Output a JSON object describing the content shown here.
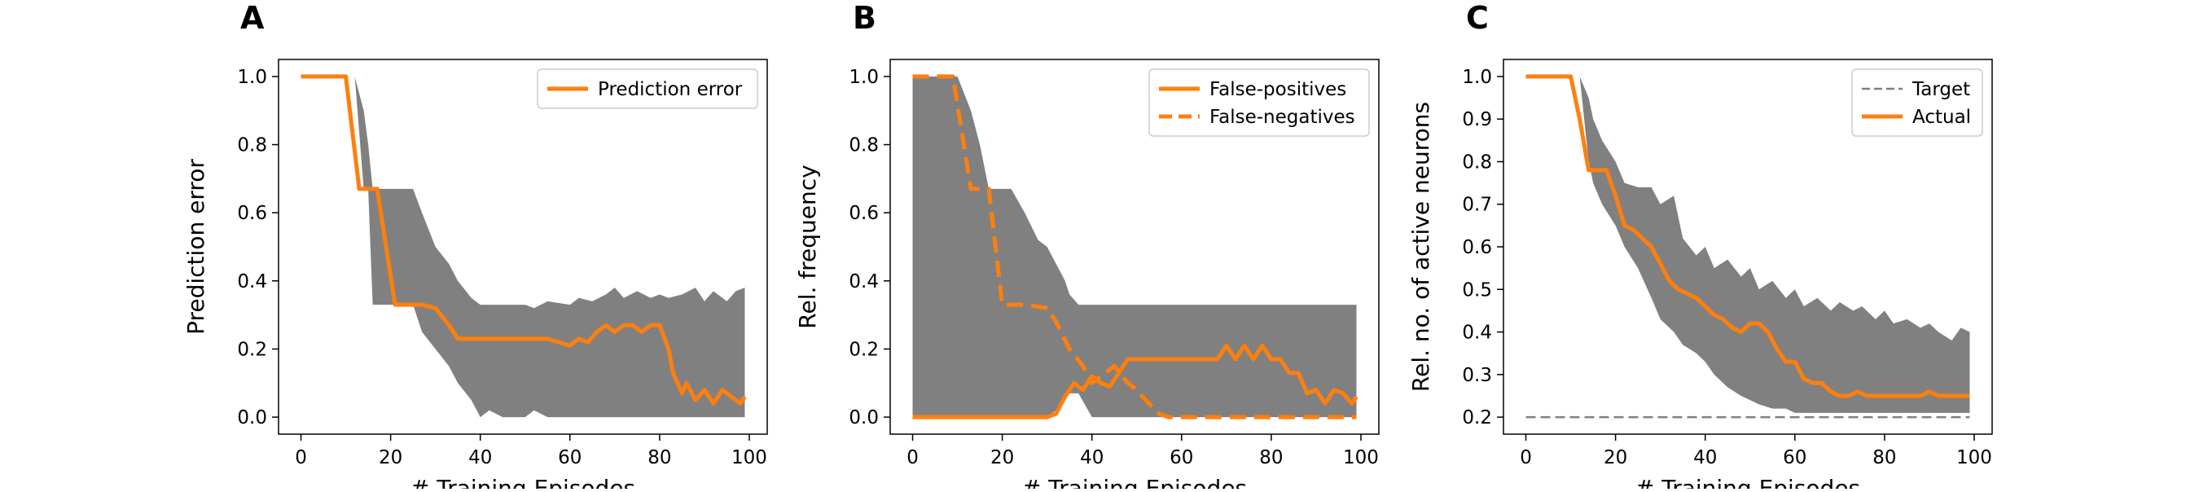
{
  "colors": {
    "band": "#808080",
    "line": "#ff7f0e",
    "target": "#808080",
    "axes": "#000000",
    "legend_border": "#cccccc"
  },
  "chart_data": [
    {
      "type": "line",
      "panel": "A",
      "xlabel": "# Training Episodes",
      "ylabel": "Prediction error",
      "xlim": [
        -5,
        104
      ],
      "ylim": [
        -0.05,
        1.05
      ],
      "xticks": [
        0,
        20,
        40,
        60,
        80,
        100
      ],
      "yticks": [
        0.0,
        0.2,
        0.4,
        0.6,
        0.8,
        1.0
      ],
      "ytick_labels": [
        "0.0",
        "0.2",
        "0.4",
        "0.6",
        "0.8",
        "1.0"
      ],
      "grid": false,
      "legend": "top-right",
      "bands": [
        {
          "x": [
            0,
            10,
            12,
            14,
            15,
            16,
            20,
            25,
            27,
            30,
            33,
            35,
            38,
            40,
            42,
            45,
            50,
            52,
            55,
            60,
            62,
            65,
            68,
            70,
            72,
            75,
            78,
            80,
            82,
            85,
            88,
            90,
            92,
            95,
            97,
            99
          ],
          "lower": [
            1.0,
            1.0,
            1.0,
            0.67,
            0.67,
            0.33,
            0.33,
            0.33,
            0.25,
            0.2,
            0.15,
            0.1,
            0.05,
            0.0,
            0.02,
            0.0,
            0.0,
            0.02,
            0.0,
            0.0,
            0.0,
            0.0,
            0.0,
            0.0,
            0.0,
            0.0,
            0.0,
            0.0,
            0.0,
            0.0,
            0.0,
            0.0,
            0.0,
            0.0,
            0.0,
            0.0
          ],
          "upper": [
            1.0,
            1.0,
            1.0,
            0.9,
            0.8,
            0.67,
            0.67,
            0.67,
            0.6,
            0.5,
            0.45,
            0.4,
            0.35,
            0.33,
            0.33,
            0.33,
            0.33,
            0.32,
            0.34,
            0.33,
            0.35,
            0.34,
            0.36,
            0.38,
            0.35,
            0.37,
            0.35,
            0.36,
            0.35,
            0.36,
            0.38,
            0.34,
            0.37,
            0.34,
            0.37,
            0.38
          ]
        }
      ],
      "series": [
        {
          "name": "Prediction error",
          "style": "solid",
          "x": [
            0,
            10,
            13,
            14,
            17,
            21,
            27,
            30,
            33,
            35,
            40,
            45,
            50,
            55,
            60,
            62,
            64,
            66,
            68,
            70,
            72,
            74,
            76,
            78,
            80,
            82,
            83,
            85,
            86,
            88,
            90,
            92,
            94,
            96,
            98,
            99
          ],
          "y": [
            1.0,
            1.0,
            0.67,
            0.67,
            0.67,
            0.33,
            0.33,
            0.32,
            0.27,
            0.23,
            0.23,
            0.23,
            0.23,
            0.23,
            0.21,
            0.23,
            0.22,
            0.25,
            0.27,
            0.25,
            0.27,
            0.27,
            0.25,
            0.27,
            0.27,
            0.2,
            0.13,
            0.07,
            0.1,
            0.05,
            0.08,
            0.04,
            0.08,
            0.06,
            0.04,
            0.06
          ]
        }
      ]
    },
    {
      "type": "line",
      "panel": "B",
      "xlabel": "# Training Episodes",
      "ylabel": "Rel. frequency",
      "xlim": [
        -5,
        104
      ],
      "ylim": [
        -0.05,
        1.05
      ],
      "xticks": [
        0,
        20,
        40,
        60,
        80,
        100
      ],
      "yticks": [
        0.0,
        0.2,
        0.4,
        0.6,
        0.8,
        1.0
      ],
      "ytick_labels": [
        "0.0",
        "0.2",
        "0.4",
        "0.6",
        "0.8",
        "1.0"
      ],
      "grid": false,
      "legend": "top-right",
      "bands": [
        {
          "x": [
            0,
            9,
            10,
            13,
            15,
            17,
            20,
            22,
            25,
            28,
            30,
            32,
            34,
            35,
            37,
            40,
            42,
            45,
            50,
            60,
            70,
            80,
            90,
            99
          ],
          "lower": [
            0.0,
            0.0,
            0.0,
            0.0,
            0.0,
            0.0,
            0.0,
            0.0,
            0.0,
            0.0,
            0.0,
            0.02,
            0.05,
            0.07,
            0.07,
            0.0,
            0.0,
            0.0,
            0.0,
            0.0,
            0.0,
            0.0,
            0.0,
            0.0
          ],
          "upper": [
            1.0,
            1.0,
            1.0,
            0.9,
            0.8,
            0.67,
            0.67,
            0.67,
            0.6,
            0.52,
            0.5,
            0.45,
            0.4,
            0.36,
            0.33,
            0.33,
            0.33,
            0.33,
            0.33,
            0.33,
            0.33,
            0.33,
            0.33,
            0.33
          ]
        }
      ],
      "series": [
        {
          "name": "False-positives",
          "style": "solid",
          "x": [
            0,
            10,
            20,
            30,
            32,
            34,
            36,
            38,
            40,
            42,
            44,
            46,
            48,
            50,
            55,
            60,
            65,
            68,
            70,
            72,
            74,
            76,
            78,
            80,
            82,
            84,
            86,
            88,
            90,
            92,
            94,
            96,
            98,
            99
          ],
          "y": [
            0.0,
            0.0,
            0.0,
            0.0,
            0.01,
            0.06,
            0.1,
            0.08,
            0.12,
            0.1,
            0.09,
            0.13,
            0.17,
            0.17,
            0.17,
            0.17,
            0.17,
            0.17,
            0.21,
            0.17,
            0.21,
            0.17,
            0.21,
            0.17,
            0.17,
            0.13,
            0.13,
            0.07,
            0.08,
            0.04,
            0.08,
            0.07,
            0.04,
            0.06
          ]
        },
        {
          "name": "False-negatives",
          "style": "dashed",
          "x": [
            0,
            9,
            13,
            15,
            17,
            20,
            25,
            30,
            32,
            35,
            38,
            40,
            42,
            45,
            48,
            50,
            52,
            55,
            57,
            60,
            70,
            80,
            90,
            99
          ],
          "y": [
            1.0,
            1.0,
            0.67,
            0.67,
            0.67,
            0.33,
            0.33,
            0.32,
            0.28,
            0.2,
            0.15,
            0.1,
            0.12,
            0.15,
            0.1,
            0.08,
            0.05,
            0.01,
            0.0,
            0.0,
            0.0,
            0.0,
            0.0,
            0.0
          ]
        }
      ]
    },
    {
      "type": "line",
      "panel": "C",
      "xlabel": "# Training Episodes",
      "ylabel": "Rel. no. of active neurons",
      "xlim": [
        -5,
        104
      ],
      "ylim": [
        0.16,
        1.04
      ],
      "xticks": [
        0,
        20,
        40,
        60,
        80,
        100
      ],
      "yticks": [
        0.2,
        0.3,
        0.4,
        0.5,
        0.6,
        0.7,
        0.8,
        0.9,
        1.0
      ],
      "ytick_labels": [
        "0.2",
        "0.3",
        "0.4",
        "0.5",
        "0.6",
        "0.7",
        "0.8",
        "0.9",
        "1.0"
      ],
      "grid": false,
      "legend": "top-right",
      "bands": [
        {
          "x": [
            0,
            10,
            12,
            14,
            15,
            17,
            20,
            22,
            25,
            28,
            30,
            33,
            35,
            38,
            40,
            42,
            45,
            48,
            50,
            52,
            55,
            58,
            60,
            62,
            65,
            68,
            70,
            73,
            75,
            78,
            80,
            82,
            85,
            88,
            90,
            92,
            95,
            97,
            99
          ],
          "lower": [
            1.0,
            1.0,
            1.0,
            0.8,
            0.75,
            0.7,
            0.65,
            0.6,
            0.55,
            0.48,
            0.43,
            0.4,
            0.37,
            0.35,
            0.33,
            0.3,
            0.27,
            0.25,
            0.24,
            0.23,
            0.22,
            0.22,
            0.21,
            0.21,
            0.21,
            0.21,
            0.21,
            0.21,
            0.21,
            0.21,
            0.21,
            0.21,
            0.21,
            0.21,
            0.21,
            0.21,
            0.21,
            0.21,
            0.21
          ],
          "upper": [
            1.0,
            1.0,
            1.0,
            0.95,
            0.9,
            0.85,
            0.8,
            0.75,
            0.74,
            0.74,
            0.7,
            0.72,
            0.62,
            0.58,
            0.6,
            0.55,
            0.57,
            0.53,
            0.55,
            0.5,
            0.52,
            0.48,
            0.5,
            0.46,
            0.48,
            0.45,
            0.47,
            0.45,
            0.46,
            0.43,
            0.45,
            0.42,
            0.43,
            0.41,
            0.42,
            0.4,
            0.38,
            0.41,
            0.4
          ]
        }
      ],
      "series": [
        {
          "name": "Target",
          "style": "dashed-thin",
          "x": [
            0,
            99
          ],
          "y": [
            0.2,
            0.2
          ]
        },
        {
          "name": "Actual",
          "style": "solid",
          "x": [
            0,
            10,
            12,
            14,
            16,
            18,
            20,
            22,
            24,
            26,
            28,
            30,
            32,
            34,
            36,
            38,
            40,
            42,
            44,
            46,
            48,
            50,
            52,
            54,
            56,
            58,
            60,
            62,
            64,
            66,
            68,
            70,
            72,
            74,
            76,
            78,
            80,
            82,
            84,
            86,
            88,
            90,
            92,
            94,
            96,
            98,
            99
          ],
          "y": [
            1.0,
            1.0,
            0.9,
            0.78,
            0.78,
            0.78,
            0.72,
            0.65,
            0.64,
            0.62,
            0.6,
            0.56,
            0.52,
            0.5,
            0.49,
            0.48,
            0.46,
            0.44,
            0.43,
            0.41,
            0.4,
            0.42,
            0.42,
            0.4,
            0.36,
            0.33,
            0.33,
            0.29,
            0.28,
            0.28,
            0.26,
            0.25,
            0.25,
            0.26,
            0.25,
            0.25,
            0.25,
            0.25,
            0.25,
            0.25,
            0.25,
            0.26,
            0.25,
            0.25,
            0.25,
            0.25,
            0.25
          ]
        }
      ]
    }
  ]
}
